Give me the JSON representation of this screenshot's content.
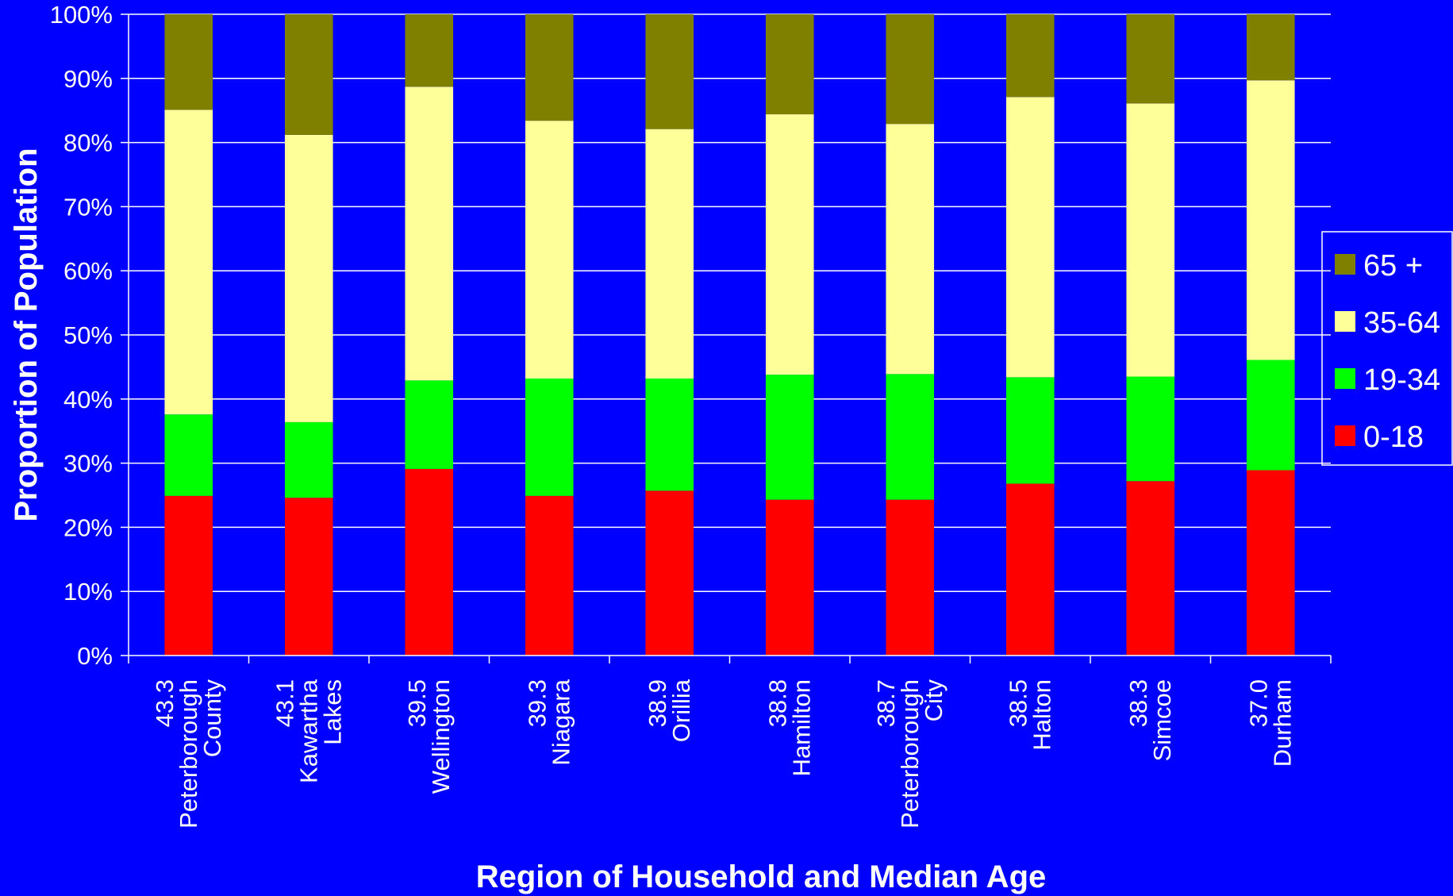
{
  "chart_data": {
    "type": "bar",
    "stacked": true,
    "title": "",
    "xlabel": "Region of Household and Median Age",
    "ylabel": "Proportion of Population",
    "ylim": [
      0,
      100
    ],
    "y_ticks": [
      "0%",
      "10%",
      "20%",
      "30%",
      "40%",
      "50%",
      "60%",
      "70%",
      "80%",
      "90%",
      "100%"
    ],
    "grid": true,
    "legend_position": "right",
    "categories": [
      [
        "43.3",
        "Peterborough",
        "County"
      ],
      [
        "43.1",
        "Kawartha",
        "Lakes"
      ],
      [
        "39.5",
        "Wellington"
      ],
      [
        "39.3",
        "Niagara"
      ],
      [
        "38.9",
        "Orillia"
      ],
      [
        "38.8",
        "Hamilton"
      ],
      [
        "38.7",
        "Peterborough",
        "City"
      ],
      [
        "38.5",
        "Halton"
      ],
      [
        "38.3",
        "Simcoe"
      ],
      [
        "37.0",
        "Durham"
      ]
    ],
    "series": [
      {
        "name": "0-18",
        "color": "#FF0000",
        "values": [
          24.9,
          24.6,
          29.1,
          24.9,
          25.7,
          24.3,
          24.3,
          26.8,
          27.2,
          28.9
        ]
      },
      {
        "name": "19-34",
        "color": "#00FF00",
        "values": [
          12.7,
          11.8,
          13.8,
          18.3,
          17.5,
          19.5,
          19.6,
          16.6,
          16.3,
          17.2
        ]
      },
      {
        "name": "35-64",
        "color": "#FFFF99",
        "values": [
          47.5,
          44.8,
          45.8,
          40.2,
          38.9,
          40.6,
          39.0,
          43.7,
          42.6,
          43.6
        ]
      },
      {
        "name": "65 +",
        "color": "#808000",
        "values": [
          14.9,
          18.8,
          11.3,
          16.6,
          17.9,
          15.6,
          17.1,
          12.9,
          13.9,
          10.3
        ]
      }
    ],
    "legend_order": [
      "65 +",
      "35-64",
      "19-34",
      "0-18"
    ],
    "colors": {
      "background": "#0000FF",
      "gridline": "#FFFFFF",
      "text": "#FFFFFF"
    }
  }
}
